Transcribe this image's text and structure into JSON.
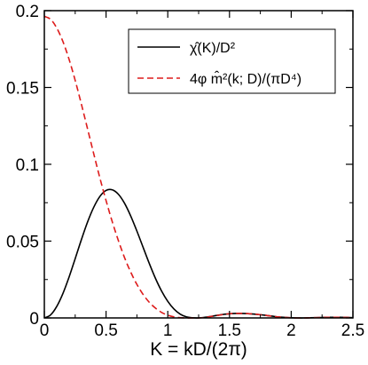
{
  "chart_data": {
    "type": "line",
    "xlabel": "K = kD/(2π)",
    "ylabel": "",
    "xlim": [
      0,
      2.5
    ],
    "ylim": [
      0,
      0.2
    ],
    "xticks": [
      0,
      0.5,
      1,
      1.5,
      2,
      2.5
    ],
    "xtick_labels": [
      "0",
      "0.5",
      "1",
      "1.5",
      "2",
      "2.5"
    ],
    "yticks": [
      0,
      0.05,
      0.1,
      0.15,
      0.2
    ],
    "ytick_labels": [
      "0",
      "0.05",
      "0.1",
      "0.15",
      "0.2"
    ],
    "grid": false,
    "legend_position": "top-right",
    "series": [
      {
        "name": "χ̂(K)/D²",
        "color": "#000000",
        "style": "solid",
        "x": [
          0,
          0.05,
          0.1,
          0.15,
          0.2,
          0.25,
          0.3,
          0.35,
          0.4,
          0.45,
          0.5,
          0.55,
          0.6,
          0.65,
          0.7,
          0.75,
          0.8,
          0.85,
          0.9,
          0.95,
          1.0,
          1.05,
          1.1,
          1.15,
          1.2,
          1.25,
          1.3,
          1.35,
          1.4,
          1.45,
          1.5,
          1.55,
          1.6,
          1.65,
          1.7,
          1.75,
          1.8,
          1.85,
          1.9,
          1.95,
          2.0,
          2.05,
          2.1,
          2.15,
          2.2,
          2.25,
          2.3,
          2.35,
          2.4,
          2.45,
          2.5
        ],
        "y": [
          0,
          0.0019,
          0.0074,
          0.0158,
          0.0265,
          0.0386,
          0.0509,
          0.0624,
          0.072,
          0.0791,
          0.083,
          0.0834,
          0.0805,
          0.0746,
          0.0663,
          0.0565,
          0.046,
          0.0355,
          0.0258,
          0.0175,
          0.0108,
          0.0058,
          0.0025,
          0.0007,
          0.0001,
          0.0,
          0.0004,
          0.001,
          0.0017,
          0.0023,
          0.0027,
          0.0029,
          0.0029,
          0.0028,
          0.0025,
          0.0021,
          0.0016,
          0.0011,
          0.0006,
          0.0003,
          0.0001,
          0.0,
          0.0,
          0.0001,
          0.0002,
          0.0003,
          0.0004,
          0.0004,
          0.0004,
          0.0003,
          0.0002
        ]
      },
      {
        "name": "4φ m̂²(k; D)/(πD⁴)",
        "color": "#dd1c1c",
        "style": "dashed",
        "x": [
          0,
          0.05,
          0.1,
          0.15,
          0.2,
          0.25,
          0.3,
          0.35,
          0.4,
          0.45,
          0.5,
          0.55,
          0.6,
          0.65,
          0.7,
          0.75,
          0.8,
          0.85,
          0.9,
          0.95,
          1.0,
          1.05,
          1.1,
          1.15,
          1.2,
          1.25,
          1.3,
          1.35,
          1.4,
          1.45,
          1.5,
          1.55,
          1.6,
          1.65,
          1.7,
          1.75,
          1.8,
          1.85,
          1.9,
          1.95,
          2.0,
          2.05,
          2.1,
          2.15,
          2.2,
          2.25,
          2.3,
          2.35,
          2.4,
          2.45,
          2.5
        ],
        "y": [
          0.1963,
          0.1944,
          0.1888,
          0.18,
          0.1684,
          0.1546,
          0.1392,
          0.1231,
          0.1069,
          0.0911,
          0.0764,
          0.0627,
          0.0503,
          0.0392,
          0.0298,
          0.0218,
          0.0153,
          0.0102,
          0.0064,
          0.0036,
          0.0018,
          0.0007,
          0.0002,
          0.0,
          0.0,
          0.0,
          0.0003,
          0.0009,
          0.0016,
          0.0022,
          0.0027,
          0.0029,
          0.0029,
          0.0028,
          0.0025,
          0.0021,
          0.0016,
          0.0011,
          0.0006,
          0.0003,
          0.0001,
          0.0,
          0.0,
          0.0001,
          0.0002,
          0.0003,
          0.0004,
          0.0004,
          0.0004,
          0.0003,
          0.0002
        ]
      }
    ]
  },
  "legend": {
    "entries": [
      {
        "label": "χ̂(K)/D²",
        "color": "#000000",
        "style": "solid"
      },
      {
        "label": "4φ m̂²(k; D)/(πD⁴)",
        "color": "#dd1c1c",
        "style": "dashed"
      }
    ]
  }
}
